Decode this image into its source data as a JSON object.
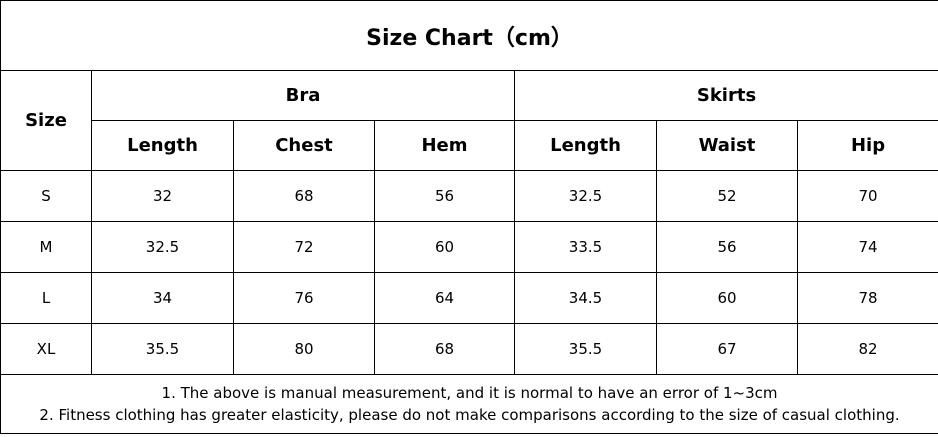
{
  "title": "Size Chart（cm）",
  "size_header": "Size",
  "groups": [
    "Bra",
    "Skirts"
  ],
  "columns": [
    "Length",
    "Chest",
    "Hem",
    "Length",
    "Waist",
    "Hip"
  ],
  "rows": [
    [
      "S",
      "32",
      "68",
      "56",
      "32.5",
      "52",
      "70"
    ],
    [
      "M",
      "32.5",
      "72",
      "60",
      "33.5",
      "56",
      "74"
    ],
    [
      "L",
      "34",
      "76",
      "64",
      "34.5",
      "60",
      "78"
    ],
    [
      "XL",
      "35.5",
      "80",
      "68",
      "35.5",
      "67",
      "82"
    ]
  ],
  "notes": [
    "1. The above is manual measurement, and it is normal to have an error of 1~3cm",
    "2. Fitness clothing has greater elasticity, please do not make comparisons according to the size of casual clothing."
  ]
}
